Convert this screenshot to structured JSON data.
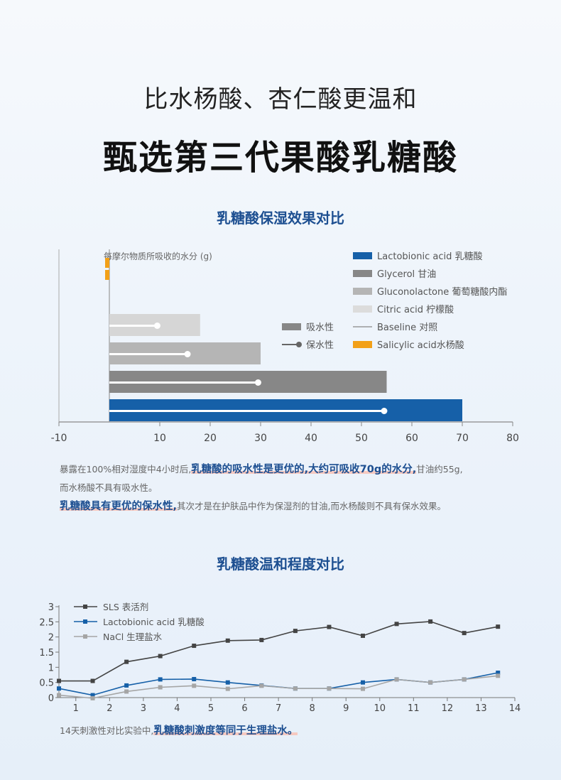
{
  "sub_headline": "比水杨酸、杏仁酸更温和",
  "headline": "甄选第三代果酸乳糖酸",
  "chart1_title": "乳糖酸保湿效果对比",
  "chart2_title": "乳糖酸温和程度对比",
  "chart_data": [
    {
      "type": "bar",
      "orientation": "horizontal",
      "annotation": "每摩尔物质所吸收的水分 (g)",
      "xlim": [
        -10,
        80
      ],
      "xticks": [
        -10,
        10,
        20,
        30,
        40,
        50,
        60,
        70,
        80
      ],
      "baseline": 0,
      "bars": [
        {
          "name": "Lactobionic acid 乳糖酸",
          "absorption": 70,
          "retention": 54.5,
          "color": "#1660a8"
        },
        {
          "name": "Glycerol 甘油",
          "absorption": 55,
          "retention": 29.5,
          "color": "#878787"
        },
        {
          "name": "Gluconolactone 葡萄糖酸内酯",
          "absorption": 30,
          "retention": 15.5,
          "color": "#b5b5b5"
        },
        {
          "name": "Citric acid 柠檬酸",
          "absorption": 18,
          "retention": 9.5,
          "color": "#d6d6d6"
        },
        {
          "name": "Salicylic acid水杨酸",
          "absorption": 0,
          "retention": 0,
          "color": "#f2a018"
        }
      ],
      "legend": [
        {
          "label": "Lactobionic acid 乳糖酸",
          "color": "#1660a8",
          "kind": "box"
        },
        {
          "label": "Glycerol 甘油",
          "color": "#878787",
          "kind": "box"
        },
        {
          "label": "Gluconolactone 葡萄糖酸内酯",
          "color": "#b5b5b5",
          "kind": "box"
        },
        {
          "label": "Citric acid 柠檬酸",
          "color": "#dcdcdc",
          "kind": "box"
        },
        {
          "label": "Baseline 对照",
          "color": "#999999",
          "kind": "line"
        },
        {
          "label": "Salicylic acid水杨酸",
          "color": "#f2a018",
          "kind": "box"
        }
      ],
      "metric_legend": [
        {
          "label": "吸水性",
          "color": "#878787",
          "kind": "box"
        },
        {
          "label": "保水性",
          "color": "#666666",
          "kind": "pin"
        }
      ],
      "legend_position": "top-right"
    },
    {
      "type": "line",
      "x": [
        0.5,
        1.5,
        2.5,
        3.5,
        4.5,
        5.5,
        6.5,
        7.5,
        8.5,
        9.5,
        10.5,
        11.5,
        12.5,
        13.5
      ],
      "xticks": [
        1,
        2,
        3,
        4,
        5,
        6,
        7,
        8,
        9,
        10,
        11,
        12,
        13,
        14
      ],
      "yticks": [
        0,
        0.5,
        1,
        1.5,
        2,
        2.5,
        3
      ],
      "xlim": [
        0.5,
        14
      ],
      "ylim": [
        0,
        3
      ],
      "series": [
        {
          "name": "SLS 表活剂",
          "color": "#444444",
          "values": [
            0.55,
            0.55,
            1.18,
            1.37,
            1.71,
            1.88,
            1.9,
            2.2,
            2.33,
            2.04,
            2.43,
            2.51,
            2.13,
            2.34
          ]
        },
        {
          "name": "Lactobionic acid 乳糖酸",
          "color": "#1660a8",
          "values": [
            0.3,
            0.08,
            0.4,
            0.6,
            0.61,
            0.5,
            0.4,
            0.3,
            0.3,
            0.5,
            0.6,
            0.5,
            0.6,
            0.82
          ]
        },
        {
          "name": "NaCl 生理盐水",
          "color": "#a5a5a5",
          "values": [
            0.08,
            -0.02,
            0.2,
            0.34,
            0.39,
            0.29,
            0.39,
            0.3,
            0.3,
            0.29,
            0.6,
            0.5,
            0.6,
            0.72
          ]
        }
      ],
      "legend_position": "top-left"
    }
  ],
  "note1": {
    "p1_pre": "暴露在100%相对湿度中4小时后,",
    "p1_hl": "乳糖酸的吸水性是更优的,大约可吸收70g的水分,",
    "p1_post": "甘油约55g,",
    "p2": "而水杨酸不具有吸水性。",
    "p3_hl": "乳糖酸具有更优的保水性,",
    "p3_post": "其次才是在护肤品中作为保湿剂的甘油,而水杨酸则不具有保水效果。"
  },
  "note2": {
    "pre": "14天刺激性对比实验中,",
    "hl": "乳糖酸刺激度等同于生理盐水。"
  }
}
